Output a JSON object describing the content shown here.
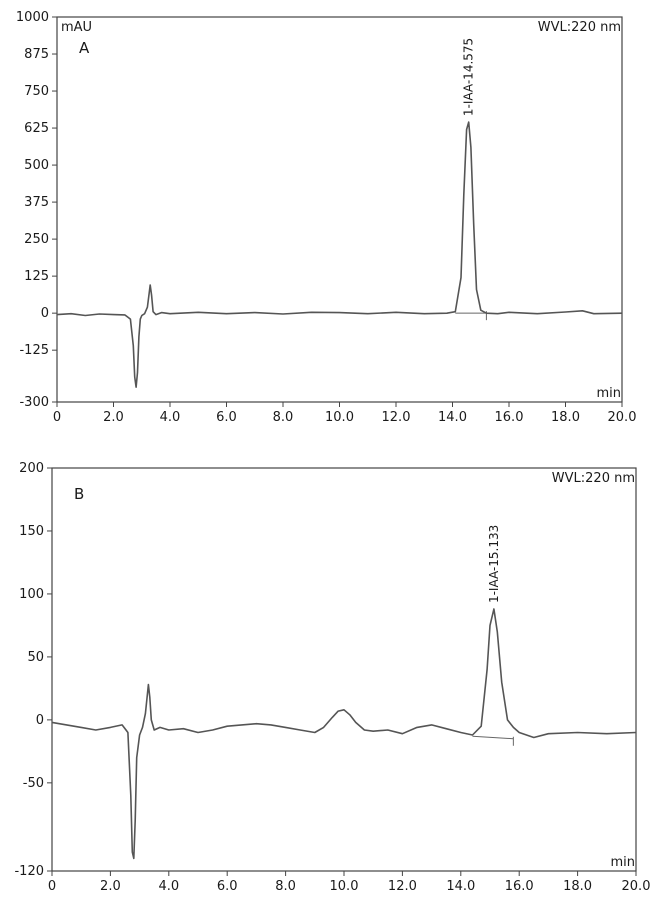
{
  "chart_data": [
    {
      "type": "line",
      "panel_label": "A",
      "ylabel": "mAU",
      "xlabel": "min",
      "wavelength_label": "WVL:220 nm",
      "xlim": [
        0,
        20
      ],
      "ylim": [
        -300,
        1000
      ],
      "x_ticks": [
        "0",
        "2.0",
        "4.0",
        "6.0",
        "8.0",
        "10.0",
        "12.0",
        "14.0",
        "16.0",
        "18.0",
        "20.0"
      ],
      "y_ticks": [
        "1000",
        "875",
        "750",
        "625",
        "500",
        "375",
        "250",
        "125",
        "0",
        "-125",
        "-300"
      ],
      "y_tick_values": [
        1000,
        875,
        750,
        625,
        500,
        375,
        250,
        125,
        0,
        -125,
        -300
      ],
      "peak_annotation": {
        "text": "1-IAA-14.575",
        "x": 14.575,
        "y": 645
      },
      "series": [
        {
          "x": [
            0,
            0.5,
            1.0,
            1.5,
            2.0,
            2.4,
            2.6,
            2.7,
            2.75,
            2.8,
            2.85,
            2.9,
            2.95,
            3.0,
            3.1,
            3.2,
            3.3,
            3.35,
            3.4,
            3.5,
            3.7,
            4.0,
            5.0,
            6.0,
            7.0,
            8.0,
            9.0,
            10.0,
            11.0,
            12.0,
            13.0,
            13.8,
            14.1,
            14.3,
            14.4,
            14.5,
            14.575,
            14.65,
            14.75,
            14.85,
            15.0,
            15.2,
            15.6,
            16.0,
            17.0,
            18.0,
            18.6,
            19.0,
            20.0
          ],
          "y": [
            -5,
            -2,
            -8,
            -3,
            -5,
            -6,
            -20,
            -110,
            -215,
            -250,
            -200,
            -80,
            -20,
            -8,
            -2,
            20,
            95,
            60,
            5,
            -5,
            2,
            -2,
            3,
            -2,
            2,
            -3,
            3,
            2,
            -2,
            3,
            -2,
            0,
            5,
            120,
            400,
            620,
            645,
            560,
            300,
            80,
            10,
            0,
            -2,
            3,
            -2,
            4,
            8,
            -2,
            0
          ]
        }
      ],
      "baseline_segment": {
        "x": [
          14.1,
          15.2
        ],
        "y": [
          0,
          0
        ]
      }
    },
    {
      "type": "line",
      "panel_label": "B",
      "ylabel": "",
      "xlabel": "min",
      "wavelength_label": "WVL:220 nm",
      "xlim": [
        0,
        20
      ],
      "ylim": [
        -120,
        200
      ],
      "x_ticks": [
        "0",
        "2.0",
        "4.0",
        "6.0",
        "8.0",
        "10.0",
        "12.0",
        "14.0",
        "16.0",
        "18.0",
        "20.0"
      ],
      "y_ticks": [
        "200",
        "150",
        "100",
        "50",
        "0",
        "-50",
        "-120"
      ],
      "y_tick_values": [
        200,
        150,
        100,
        50,
        0,
        -50,
        -120
      ],
      "peak_annotation": {
        "text": "1-IAA-15.133",
        "x": 15.133,
        "y": 88
      },
      "series": [
        {
          "x": [
            0,
            0.5,
            1.0,
            1.5,
            2.0,
            2.4,
            2.6,
            2.7,
            2.75,
            2.8,
            2.85,
            2.9,
            3.0,
            3.1,
            3.2,
            3.3,
            3.35,
            3.4,
            3.5,
            3.7,
            4.0,
            4.5,
            5.0,
            5.5,
            6.0,
            6.5,
            7.0,
            7.5,
            8.0,
            8.5,
            9.0,
            9.3,
            9.6,
            9.8,
            10.0,
            10.2,
            10.4,
            10.7,
            11.0,
            11.5,
            12.0,
            12.5,
            13.0,
            13.5,
            14.0,
            14.4,
            14.7,
            14.9,
            15.0,
            15.133,
            15.25,
            15.4,
            15.6,
            15.8,
            16.0,
            16.5,
            17.0,
            18.0,
            19.0,
            20.0
          ],
          "y": [
            -2,
            -4,
            -6,
            -8,
            -6,
            -4,
            -10,
            -60,
            -105,
            -110,
            -80,
            -30,
            -12,
            -6,
            5,
            28,
            18,
            0,
            -8,
            -6,
            -8,
            -7,
            -10,
            -8,
            -5,
            -4,
            -3,
            -4,
            -6,
            -8,
            -10,
            -6,
            2,
            7,
            8,
            4,
            -2,
            -8,
            -9,
            -8,
            -11,
            -6,
            -4,
            -7,
            -10,
            -12,
            -5,
            40,
            75,
            88,
            70,
            30,
            0,
            -6,
            -10,
            -14,
            -11,
            -10,
            -11,
            -10
          ]
        }
      ],
      "baseline_segment": {
        "x": [
          14.4,
          15.8
        ],
        "y": [
          -13,
          -15
        ]
      }
    }
  ]
}
